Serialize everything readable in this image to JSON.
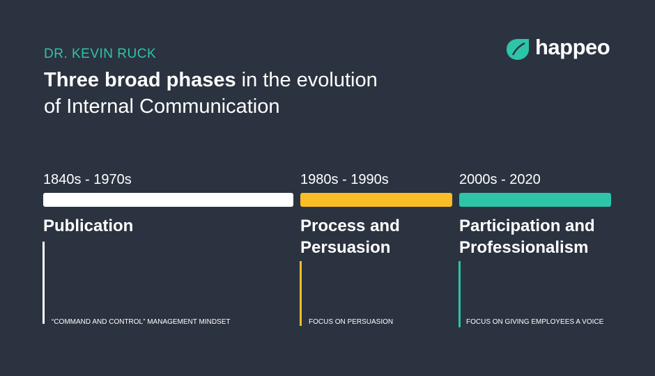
{
  "header": {
    "author": "DR. KEVIN RUCK",
    "title_bold": "Three broad phases",
    "title_line1_rest": "in the evolution",
    "title_line2": "of Internal Communication"
  },
  "logo": {
    "text": "happeo",
    "color": "#2ec4a9"
  },
  "phases": [
    {
      "period": "1840s - 1970s",
      "title": "Publication",
      "note": "“COMMAND AND CONTROL” MANAGEMENT MINDSET",
      "color": "#ffffff"
    },
    {
      "period": "1980s - 1990s",
      "title": "Process and Persuasion",
      "note": "FOCUS ON PERSUASION",
      "color": "#f9bd27"
    },
    {
      "period": "2000s - 2020",
      "title": "Participation and Professionalism",
      "note": "FOCUS ON GIVING EMPLOYEES A VOICE",
      "color": "#2ec4a9"
    }
  ]
}
